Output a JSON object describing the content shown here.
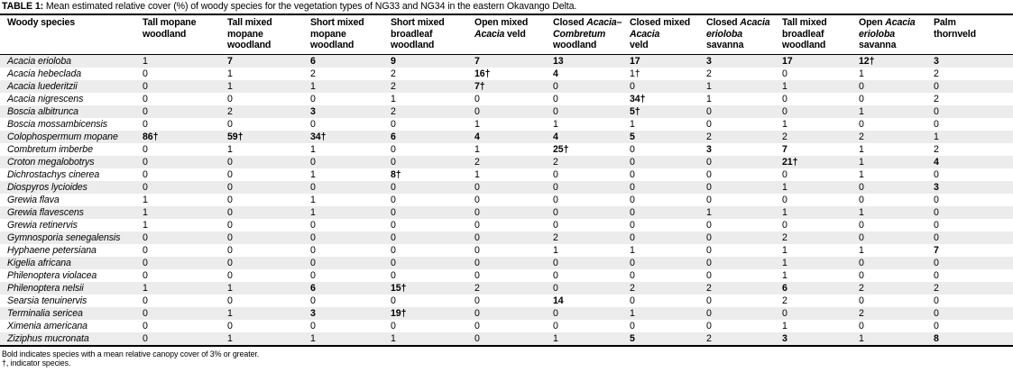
{
  "caption": {
    "label": "TABLE 1:",
    "text": " Mean estimated relative cover (%) of woody species for the vegetation types of NG33 and NG34 in the eastern Okavango Delta."
  },
  "table": {
    "species_header": "Woody species",
    "columns": [
      [
        [
          [
            "Tall mopane",
            0
          ]
        ],
        [
          [
            "woodland",
            0
          ]
        ]
      ],
      [
        [
          [
            "Tall mixed",
            0
          ]
        ],
        [
          [
            "mopane",
            0
          ]
        ],
        [
          [
            "woodland",
            0
          ]
        ]
      ],
      [
        [
          [
            "Short mixed",
            0
          ]
        ],
        [
          [
            "mopane",
            0
          ]
        ],
        [
          [
            "woodland",
            0
          ]
        ]
      ],
      [
        [
          [
            "Short mixed",
            0
          ]
        ],
        [
          [
            "broadleaf",
            0
          ]
        ],
        [
          [
            "woodland",
            0
          ]
        ]
      ],
      [
        [
          [
            "Open mixed",
            0
          ]
        ],
        [
          [
            "Acacia",
            1
          ],
          [
            " veld",
            0
          ]
        ]
      ],
      [
        [
          [
            "Closed ",
            0
          ],
          [
            "Acacia–",
            1
          ]
        ],
        [
          [
            "Combretum",
            1
          ]
        ],
        [
          [
            "woodland",
            0
          ]
        ]
      ],
      [
        [
          [
            "Closed mixed",
            0
          ]
        ],
        [
          [
            "Acacia",
            1
          ]
        ],
        [
          [
            "veld",
            0
          ]
        ]
      ],
      [
        [
          [
            "Closed ",
            0
          ],
          [
            "Acacia",
            1
          ]
        ],
        [
          [
            "erioloba",
            1
          ]
        ],
        [
          [
            "savanna",
            0
          ]
        ]
      ],
      [
        [
          [
            "Tall mixed",
            0
          ]
        ],
        [
          [
            "broadleaf",
            0
          ]
        ],
        [
          [
            "woodland",
            0
          ]
        ]
      ],
      [
        [
          [
            "Open ",
            0
          ],
          [
            "Acacia",
            1
          ]
        ],
        [
          [
            "erioloba",
            1
          ]
        ],
        [
          [
            "savanna",
            0
          ]
        ]
      ],
      [
        [
          [
            "Palm",
            0
          ]
        ],
        [
          [
            "thornveld",
            0
          ]
        ]
      ]
    ],
    "rows": [
      {
        "species": "Acacia erioloba",
        "cells": [
          [
            "1",
            0
          ],
          [
            "7",
            1
          ],
          [
            "6",
            1
          ],
          [
            "9",
            1
          ],
          [
            "7",
            1
          ],
          [
            "13",
            1
          ],
          [
            "17",
            1
          ],
          [
            "3",
            1
          ],
          [
            "17",
            1
          ],
          [
            "12†",
            1
          ],
          [
            "3",
            1
          ]
        ]
      },
      {
        "species": "Acacia hebeclada",
        "cells": [
          [
            "0",
            0
          ],
          [
            "1",
            0
          ],
          [
            "2",
            0
          ],
          [
            "2",
            0
          ],
          [
            "16†",
            1
          ],
          [
            "4",
            1
          ],
          [
            "1†",
            0
          ],
          [
            "2",
            0
          ],
          [
            "0",
            0
          ],
          [
            "1",
            0
          ],
          [
            "2",
            0
          ]
        ]
      },
      {
        "species": "Acacia luederitzii",
        "cells": [
          [
            "0",
            0
          ],
          [
            "1",
            0
          ],
          [
            "1",
            0
          ],
          [
            "2",
            0
          ],
          [
            "7†",
            1
          ],
          [
            "0",
            0
          ],
          [
            "0",
            0
          ],
          [
            "1",
            0
          ],
          [
            "1",
            0
          ],
          [
            "0",
            0
          ],
          [
            "0",
            0
          ]
        ]
      },
      {
        "species": "Acacia nigrescens",
        "cells": [
          [
            "0",
            0
          ],
          [
            "0",
            0
          ],
          [
            "0",
            0
          ],
          [
            "1",
            0
          ],
          [
            "0",
            0
          ],
          [
            "0",
            0
          ],
          [
            "34†",
            1
          ],
          [
            "1",
            0
          ],
          [
            "0",
            0
          ],
          [
            "0",
            0
          ],
          [
            "2",
            0
          ]
        ]
      },
      {
        "species": "Boscia albitrunca",
        "cells": [
          [
            "0",
            0
          ],
          [
            "2",
            0
          ],
          [
            "3",
            1
          ],
          [
            "2",
            0
          ],
          [
            "0",
            0
          ],
          [
            "0",
            0
          ],
          [
            "5†",
            1
          ],
          [
            "0",
            0
          ],
          [
            "0",
            0
          ],
          [
            "1",
            0
          ],
          [
            "0",
            0
          ]
        ]
      },
      {
        "species": "Boscia mossambicensis",
        "cells": [
          [
            "0",
            0
          ],
          [
            "0",
            0
          ],
          [
            "0",
            0
          ],
          [
            "0",
            0
          ],
          [
            "1",
            0
          ],
          [
            "1",
            0
          ],
          [
            "1",
            0
          ],
          [
            "0",
            0
          ],
          [
            "1",
            0
          ],
          [
            "0",
            0
          ],
          [
            "0",
            0
          ]
        ]
      },
      {
        "species": "Colophospermum mopane",
        "cells": [
          [
            "86†",
            1
          ],
          [
            "59†",
            1
          ],
          [
            "34†",
            1
          ],
          [
            "6",
            1
          ],
          [
            "4",
            1
          ],
          [
            "4",
            1
          ],
          [
            "5",
            1
          ],
          [
            "2",
            0
          ],
          [
            "2",
            0
          ],
          [
            "2",
            0
          ],
          [
            "1",
            0
          ]
        ]
      },
      {
        "species": "Combretum imberbe",
        "cells": [
          [
            "0",
            0
          ],
          [
            "1",
            0
          ],
          [
            "1",
            0
          ],
          [
            "0",
            0
          ],
          [
            "1",
            0
          ],
          [
            "25†",
            1
          ],
          [
            "0",
            0
          ],
          [
            "3",
            1
          ],
          [
            "7",
            1
          ],
          [
            "1",
            0
          ],
          [
            "2",
            0
          ]
        ]
      },
      {
        "species": "Croton megalobotrys",
        "cells": [
          [
            "0",
            0
          ],
          [
            "0",
            0
          ],
          [
            "0",
            0
          ],
          [
            "0",
            0
          ],
          [
            "2",
            0
          ],
          [
            "2",
            0
          ],
          [
            "0",
            0
          ],
          [
            "0",
            0
          ],
          [
            "21†",
            1
          ],
          [
            "1",
            0
          ],
          [
            "4",
            1
          ]
        ]
      },
      {
        "species": "Dichrostachys cinerea",
        "cells": [
          [
            "0",
            0
          ],
          [
            "0",
            0
          ],
          [
            "1",
            0
          ],
          [
            "8†",
            1
          ],
          [
            "1",
            0
          ],
          [
            "0",
            0
          ],
          [
            "0",
            0
          ],
          [
            "0",
            0
          ],
          [
            "0",
            0
          ],
          [
            "1",
            0
          ],
          [
            "0",
            0
          ]
        ]
      },
      {
        "species": "Diospyros lycioides",
        "cells": [
          [
            "0",
            0
          ],
          [
            "0",
            0
          ],
          [
            "0",
            0
          ],
          [
            "0",
            0
          ],
          [
            "0",
            0
          ],
          [
            "0",
            0
          ],
          [
            "0",
            0
          ],
          [
            "0",
            0
          ],
          [
            "1",
            0
          ],
          [
            "0",
            0
          ],
          [
            "3",
            1
          ]
        ]
      },
      {
        "species": "Grewia flava",
        "cells": [
          [
            "1",
            0
          ],
          [
            "0",
            0
          ],
          [
            "1",
            0
          ],
          [
            "0",
            0
          ],
          [
            "0",
            0
          ],
          [
            "0",
            0
          ],
          [
            "0",
            0
          ],
          [
            "0",
            0
          ],
          [
            "0",
            0
          ],
          [
            "0",
            0
          ],
          [
            "0",
            0
          ]
        ]
      },
      {
        "species": "Grewia flavescens",
        "cells": [
          [
            "1",
            0
          ],
          [
            "0",
            0
          ],
          [
            "1",
            0
          ],
          [
            "0",
            0
          ],
          [
            "0",
            0
          ],
          [
            "0",
            0
          ],
          [
            "0",
            0
          ],
          [
            "1",
            0
          ],
          [
            "1",
            0
          ],
          [
            "1",
            0
          ],
          [
            "0",
            0
          ]
        ]
      },
      {
        "species": "Grewia retinervis",
        "cells": [
          [
            "1",
            0
          ],
          [
            "0",
            0
          ],
          [
            "0",
            0
          ],
          [
            "0",
            0
          ],
          [
            "0",
            0
          ],
          [
            "0",
            0
          ],
          [
            "0",
            0
          ],
          [
            "0",
            0
          ],
          [
            "0",
            0
          ],
          [
            "0",
            0
          ],
          [
            "0",
            0
          ]
        ]
      },
      {
        "species": "Gymnosporia senegalensis",
        "cells": [
          [
            "0",
            0
          ],
          [
            "0",
            0
          ],
          [
            "0",
            0
          ],
          [
            "0",
            0
          ],
          [
            "0",
            0
          ],
          [
            "2",
            0
          ],
          [
            "0",
            0
          ],
          [
            "0",
            0
          ],
          [
            "2",
            0
          ],
          [
            "0",
            0
          ],
          [
            "0",
            0
          ]
        ]
      },
      {
        "species": "Hyphaene petersiana",
        "cells": [
          [
            "0",
            0
          ],
          [
            "0",
            0
          ],
          [
            "0",
            0
          ],
          [
            "0",
            0
          ],
          [
            "0",
            0
          ],
          [
            "1",
            0
          ],
          [
            "1",
            0
          ],
          [
            "0",
            0
          ],
          [
            "1",
            0
          ],
          [
            "1",
            0
          ],
          [
            "7",
            1
          ]
        ]
      },
      {
        "species": "Kigelia africana",
        "cells": [
          [
            "0",
            0
          ],
          [
            "0",
            0
          ],
          [
            "0",
            0
          ],
          [
            "0",
            0
          ],
          [
            "0",
            0
          ],
          [
            "0",
            0
          ],
          [
            "0",
            0
          ],
          [
            "0",
            0
          ],
          [
            "1",
            0
          ],
          [
            "0",
            0
          ],
          [
            "0",
            0
          ]
        ]
      },
      {
        "species": "Philenoptera violacea",
        "cells": [
          [
            "0",
            0
          ],
          [
            "0",
            0
          ],
          [
            "0",
            0
          ],
          [
            "0",
            0
          ],
          [
            "0",
            0
          ],
          [
            "0",
            0
          ],
          [
            "0",
            0
          ],
          [
            "0",
            0
          ],
          [
            "1",
            0
          ],
          [
            "0",
            0
          ],
          [
            "0",
            0
          ]
        ]
      },
      {
        "species": "Philenoptera nelsii",
        "cells": [
          [
            "1",
            0
          ],
          [
            "1",
            0
          ],
          [
            "6",
            1
          ],
          [
            "15†",
            1
          ],
          [
            "2",
            0
          ],
          [
            "0",
            0
          ],
          [
            "2",
            0
          ],
          [
            "2",
            0
          ],
          [
            "6",
            1
          ],
          [
            "2",
            0
          ],
          [
            "2",
            0
          ]
        ]
      },
      {
        "species": "Searsia tenuinervis",
        "cells": [
          [
            "0",
            0
          ],
          [
            "0",
            0
          ],
          [
            "0",
            0
          ],
          [
            "0",
            0
          ],
          [
            "0",
            0
          ],
          [
            "14",
            1
          ],
          [
            "0",
            0
          ],
          [
            "0",
            0
          ],
          [
            "2",
            0
          ],
          [
            "0",
            0
          ],
          [
            "0",
            0
          ]
        ]
      },
      {
        "species": "Terminalia sericea",
        "cells": [
          [
            "0",
            0
          ],
          [
            "1",
            0
          ],
          [
            "3",
            1
          ],
          [
            "19†",
            1
          ],
          [
            "0",
            0
          ],
          [
            "0",
            0
          ],
          [
            "1",
            0
          ],
          [
            "0",
            0
          ],
          [
            "0",
            0
          ],
          [
            "2",
            0
          ],
          [
            "0",
            0
          ]
        ]
      },
      {
        "species": "Ximenia americana",
        "cells": [
          [
            "0",
            0
          ],
          [
            "0",
            0
          ],
          [
            "0",
            0
          ],
          [
            "0",
            0
          ],
          [
            "0",
            0
          ],
          [
            "0",
            0
          ],
          [
            "0",
            0
          ],
          [
            "0",
            0
          ],
          [
            "1",
            0
          ],
          [
            "0",
            0
          ],
          [
            "0",
            0
          ]
        ]
      },
      {
        "species": "Ziziphus mucronata",
        "cells": [
          [
            "0",
            0
          ],
          [
            "1",
            0
          ],
          [
            "1",
            0
          ],
          [
            "1",
            0
          ],
          [
            "0",
            0
          ],
          [
            "1",
            0
          ],
          [
            "5",
            1
          ],
          [
            "2",
            0
          ],
          [
            "3",
            1
          ],
          [
            "1",
            0
          ],
          [
            "8",
            1
          ]
        ]
      }
    ]
  },
  "footnotes": {
    "line1": "Bold indicates species with a mean relative canopy cover of 3% or greater.",
    "line2": "†, indicator species."
  }
}
